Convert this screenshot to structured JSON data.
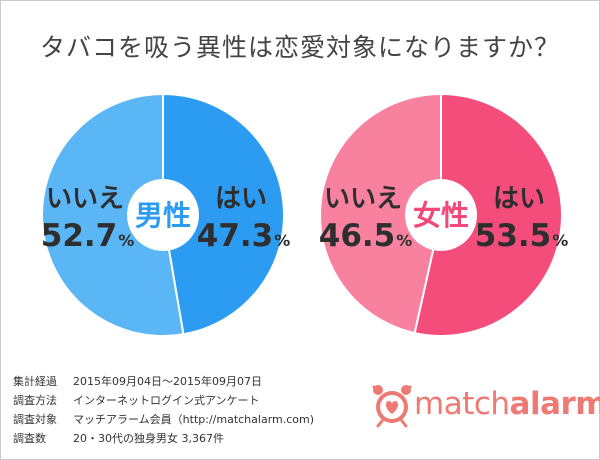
{
  "title": "タバコを吸う異性は恋愛対象になりますか？",
  "colors": {
    "male_yes": "#2b9cf2",
    "male_no": "#5bb6f6",
    "male_label": "#2b9cf2",
    "female_yes": "#f44d7c",
    "female_no": "#f8819f",
    "female_label": "#f2487a",
    "text": "#3a3a3a",
    "logo": "#ee7a74"
  },
  "chart_data": [
    {
      "type": "pie",
      "center_label": "男性",
      "slices": [
        {
          "label": "はい",
          "value": 47.3
        },
        {
          "label": "いいえ",
          "value": 52.7
        }
      ],
      "unit": "%"
    },
    {
      "type": "pie",
      "center_label": "女性",
      "slices": [
        {
          "label": "はい",
          "value": 53.5
        },
        {
          "label": "いいえ",
          "value": 46.5
        }
      ],
      "unit": "%"
    }
  ],
  "notes": [
    {
      "key": "集計経過",
      "value": "2015年09月04日〜2015年09月07日"
    },
    {
      "key": "調査方法",
      "value": "インターネットログイン式アンケート"
    },
    {
      "key": "調査対象",
      "value": "マッチアラーム会員（http://matchalarm.com)"
    },
    {
      "key": "調査数",
      "value": "20・30代の独身男女 3,367件"
    }
  ],
  "logo": {
    "icon": "alarm-clock-heart-icon",
    "prefix": "match",
    "suffix": "alarm"
  }
}
